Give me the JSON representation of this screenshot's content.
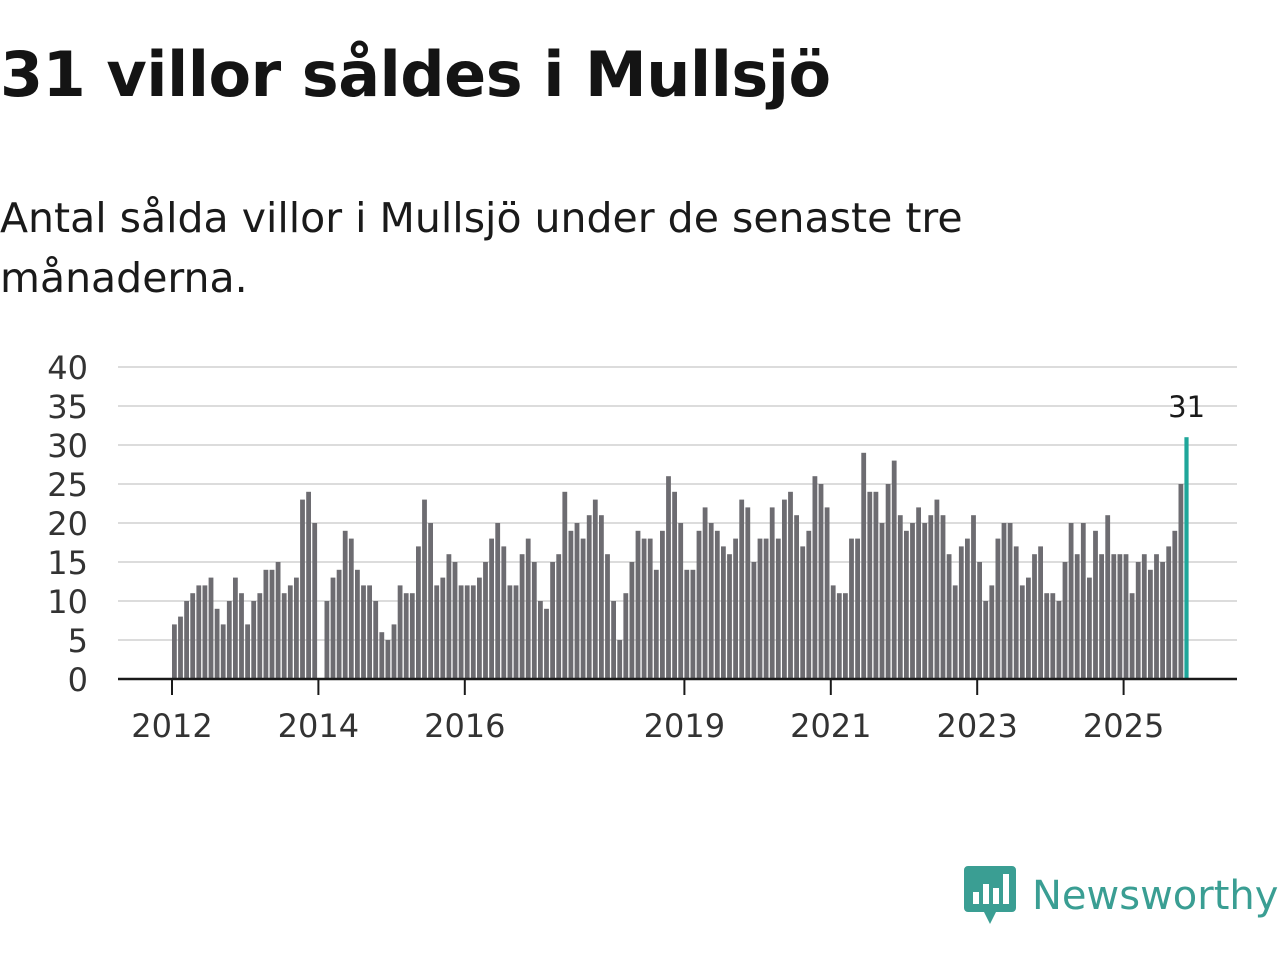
{
  "header": {
    "title": "31 villor såldes i Mullsjö",
    "subtitle": "Antal sålda villor i Mullsjö under de senaste tre månaderna."
  },
  "branding": {
    "name": "Newsworthy",
    "color": "#3a9e93",
    "icon": "bar-chart-speech-bubble-icon"
  },
  "chart_data": {
    "type": "bar",
    "title": "Antal sålda villor i Mullsjö under de senaste tre månaderna.",
    "xlabel": "",
    "ylabel": "",
    "ylim": [
      0,
      40
    ],
    "y_ticks": [
      0,
      5,
      10,
      15,
      20,
      25,
      30,
      35,
      40
    ],
    "grid": true,
    "x_tick_labels": [
      {
        "label": "2012",
        "index": 0
      },
      {
        "label": "2014",
        "index": 24
      },
      {
        "label": "2016",
        "index": 48
      },
      {
        "label": "2019",
        "index": 84
      },
      {
        "label": "2021",
        "index": 108
      },
      {
        "label": "2023",
        "index": 132
      },
      {
        "label": "2025",
        "index": 156
      }
    ],
    "bar_color": "#6d6c71",
    "highlight_color": "#1fa69a",
    "highlight_label": "31",
    "start": "2012-01",
    "series": [
      {
        "name": "Antal sålda villor",
        "values": [
          7,
          8,
          10,
          11,
          12,
          12,
          13,
          9,
          7,
          10,
          13,
          11,
          7,
          10,
          11,
          14,
          14,
          15,
          11,
          12,
          13,
          23,
          24,
          20,
          0,
          10,
          13,
          14,
          19,
          18,
          14,
          12,
          12,
          10,
          6,
          5,
          7,
          12,
          11,
          11,
          17,
          23,
          20,
          12,
          13,
          16,
          15,
          12,
          12,
          12,
          13,
          15,
          18,
          20,
          17,
          12,
          12,
          16,
          18,
          15,
          10,
          9,
          15,
          16,
          24,
          19,
          20,
          18,
          21,
          23,
          21,
          16,
          10,
          5,
          11,
          15,
          19,
          18,
          18,
          14,
          19,
          26,
          24,
          20,
          14,
          14,
          19,
          22,
          20,
          19,
          17,
          16,
          18,
          23,
          22,
          15,
          18,
          18,
          22,
          18,
          23,
          24,
          21,
          17,
          19,
          26,
          25,
          22,
          12,
          11,
          11,
          18,
          18,
          29,
          24,
          24,
          20,
          25,
          28,
          21,
          19,
          20,
          22,
          20,
          21,
          23,
          21,
          16,
          12,
          17,
          18,
          21,
          15,
          10,
          12,
          18,
          20,
          20,
          17,
          12,
          13,
          16,
          17,
          11,
          11,
          10,
          15,
          20,
          16,
          20,
          13,
          19,
          16,
          21,
          16,
          16,
          16,
          11,
          15,
          16,
          14,
          16,
          15,
          17,
          19,
          25,
          31
        ]
      }
    ]
  }
}
